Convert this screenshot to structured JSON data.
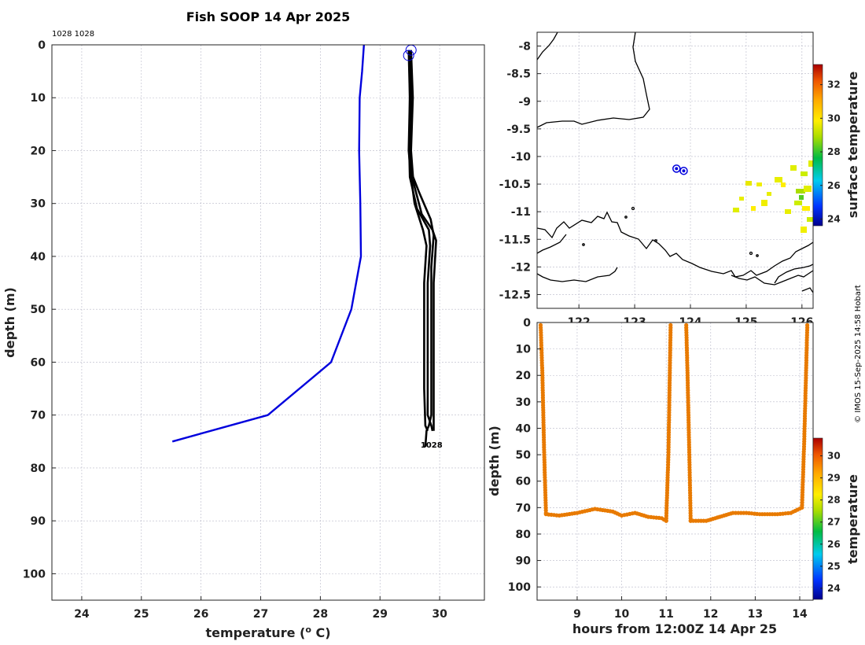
{
  "title": "Fish SOOP 14 Apr 2025",
  "copyright": "© IMOS 15-Sep-2025 14:58 Hobart",
  "profile_ids_label": "1028 1028",
  "colors": {
    "reference_profile": "#0000dd",
    "fish_profiles": "#000000",
    "track_marker": "#0000dd"
  },
  "chart_data": [
    {
      "id": "profile",
      "type": "line",
      "xlabel": "temperature (",
      "xlabel_sup": "o",
      "xlabel_tail": " C)",
      "ylabel": "depth (m)",
      "xlim": [
        23.5,
        30.75
      ],
      "ylim": [
        0,
        105
      ],
      "y_reversed": true,
      "xticks": [
        24,
        25,
        26,
        27,
        28,
        29,
        30
      ],
      "yticks": [
        0,
        10,
        20,
        30,
        40,
        50,
        60,
        70,
        80,
        90,
        100
      ],
      "end_label": "1028",
      "series": [
        {
          "name": "reference",
          "color": "#0000dd",
          "points": [
            [
              28.73,
              0
            ],
            [
              28.7,
              5
            ],
            [
              28.66,
              10
            ],
            [
              28.65,
              20
            ],
            [
              28.67,
              30
            ],
            [
              28.68,
              40
            ],
            [
              28.52,
              50
            ],
            [
              28.18,
              60
            ],
            [
              27.12,
              70
            ],
            [
              25.52,
              75
            ]
          ]
        },
        {
          "name": "cast-1",
          "color": "#000000",
          "points": [
            [
              29.48,
              1
            ],
            [
              29.5,
              10
            ],
            [
              29.48,
              20
            ],
            [
              29.52,
              25
            ],
            [
              29.58,
              30
            ],
            [
              29.72,
              35
            ],
            [
              29.78,
              38
            ],
            [
              29.74,
              45
            ],
            [
              29.74,
              55
            ],
            [
              29.74,
              65
            ],
            [
              29.76,
              72
            ],
            [
              29.8,
              73
            ]
          ]
        },
        {
          "name": "cast-2",
          "color": "#000000",
          "points": [
            [
              29.5,
              2
            ],
            [
              29.52,
              10
            ],
            [
              29.49,
              20
            ],
            [
              29.5,
              25
            ],
            [
              29.62,
              31
            ],
            [
              29.82,
              35
            ],
            [
              29.84,
              38
            ],
            [
              29.8,
              45
            ],
            [
              29.8,
              60
            ],
            [
              29.8,
              70
            ],
            [
              29.86,
              72
            ],
            [
              29.88,
              73
            ]
          ]
        },
        {
          "name": "cast-3",
          "color": "#000000",
          "points": [
            [
              29.52,
              1
            ],
            [
              29.55,
              10
            ],
            [
              29.52,
              20
            ],
            [
              29.56,
              26
            ],
            [
              29.7,
              32
            ],
            [
              29.88,
              35
            ],
            [
              29.94,
              37
            ],
            [
              29.9,
              45
            ],
            [
              29.9,
              60
            ],
            [
              29.9,
              70
            ],
            [
              29.9,
              73
            ]
          ]
        },
        {
          "name": "cast-4",
          "color": "#000000",
          "points": [
            [
              29.5,
              1
            ],
            [
              29.5,
              10
            ],
            [
              29.5,
              20
            ],
            [
              29.52,
              24
            ],
            [
              29.66,
              28
            ],
            [
              29.85,
              33
            ],
            [
              29.9,
              36
            ],
            [
              29.86,
              42
            ],
            [
              29.86,
              60
            ],
            [
              29.86,
              70
            ],
            [
              29.82,
              72
            ],
            [
              29.78,
              73
            ],
            [
              29.76,
              76
            ]
          ]
        }
      ],
      "start_markers": [
        [
          29.52,
          1
        ],
        [
          29.48,
          2
        ]
      ]
    },
    {
      "id": "map",
      "type": "scatter",
      "xlim": [
        121.25,
        126.2
      ],
      "ylim": [
        -12.75,
        -7.75
      ],
      "xticks": [
        122,
        123,
        124,
        125,
        126
      ],
      "yticks": [
        -8,
        -8.5,
        -9,
        -9.5,
        -10,
        -10.5,
        -11,
        -11.5,
        -12,
        -12.5
      ],
      "xtick_labels": [
        "122",
        "123",
        "124",
        "125",
        "126"
      ],
      "ytick_labels": [
        "-8",
        "-8.5",
        "-9",
        "-9.5",
        "-10",
        "-10.5",
        "-11",
        "-11.5",
        "-12",
        "-12.5"
      ],
      "track_points": [
        [
          123.75,
          -10.22
        ],
        [
          123.88,
          -10.26
        ]
      ],
      "colorbar": {
        "label": "surface temperature",
        "range": [
          23.6,
          33.2
        ],
        "ticks": [
          24,
          26,
          28,
          30,
          32
        ],
        "tick_labels": [
          "24",
          "26",
          "28",
          "30",
          "32"
        ]
      }
    },
    {
      "id": "timeseries",
      "type": "scatter",
      "xlabel": "hours from 12:00Z 14 Apr 25",
      "ylabel": "depth (m)",
      "xlim": [
        8.1,
        14.3
      ],
      "ylim": [
        0,
        105
      ],
      "y_reversed": true,
      "xticks": [
        9,
        10,
        11,
        12,
        13,
        14
      ],
      "yticks": [
        0,
        10,
        20,
        30,
        40,
        50,
        60,
        70,
        80,
        90,
        100
      ],
      "xtick_labels": [
        "9",
        "10",
        "11",
        "12",
        "13",
        "14"
      ],
      "ytick_labels": [
        "0",
        "10",
        "20",
        "30",
        "40",
        "50",
        "60",
        "70",
        "80",
        "90",
        "100"
      ],
      "marker_color": "#e87a00",
      "segments": [
        {
          "name": "descent-1",
          "points": [
            [
              8.18,
              1
            ],
            [
              8.22,
              20
            ],
            [
              8.26,
              50
            ],
            [
              8.3,
              72
            ]
          ]
        },
        {
          "name": "bottom-1",
          "points": [
            [
              8.3,
              72.5
            ],
            [
              8.6,
              73
            ],
            [
              9.0,
              72
            ],
            [
              9.4,
              70.5
            ],
            [
              9.8,
              71.5
            ],
            [
              10.0,
              73
            ],
            [
              10.3,
              72
            ],
            [
              10.6,
              73.5
            ],
            [
              10.9,
              74
            ],
            [
              11.0,
              75
            ]
          ]
        },
        {
          "name": "ascent-1",
          "points": [
            [
              11.0,
              75
            ],
            [
              11.05,
              50
            ],
            [
              11.08,
              20
            ],
            [
              11.1,
              1
            ]
          ]
        },
        {
          "name": "descent-2",
          "points": [
            [
              11.45,
              1
            ],
            [
              11.48,
              20
            ],
            [
              11.52,
              50
            ],
            [
              11.55,
              75
            ]
          ]
        },
        {
          "name": "bottom-2",
          "points": [
            [
              11.55,
              75
            ],
            [
              11.9,
              75
            ],
            [
              12.2,
              73.5
            ],
            [
              12.5,
              72
            ],
            [
              12.8,
              72
            ],
            [
              13.1,
              72.5
            ],
            [
              13.5,
              72.5
            ],
            [
              13.8,
              72
            ],
            [
              14.05,
              70
            ]
          ]
        },
        {
          "name": "ascent-2",
          "points": [
            [
              14.05,
              70
            ],
            [
              14.1,
              45
            ],
            [
              14.14,
              20
            ],
            [
              14.17,
              1
            ]
          ]
        }
      ],
      "colorbar": {
        "label": "temperature",
        "range": [
          23.5,
          30.8
        ],
        "ticks": [
          24,
          25,
          26,
          27,
          28,
          29,
          30
        ],
        "tick_labels": [
          "24",
          "25",
          "26",
          "27",
          "28",
          "29",
          "30"
        ]
      }
    }
  ]
}
